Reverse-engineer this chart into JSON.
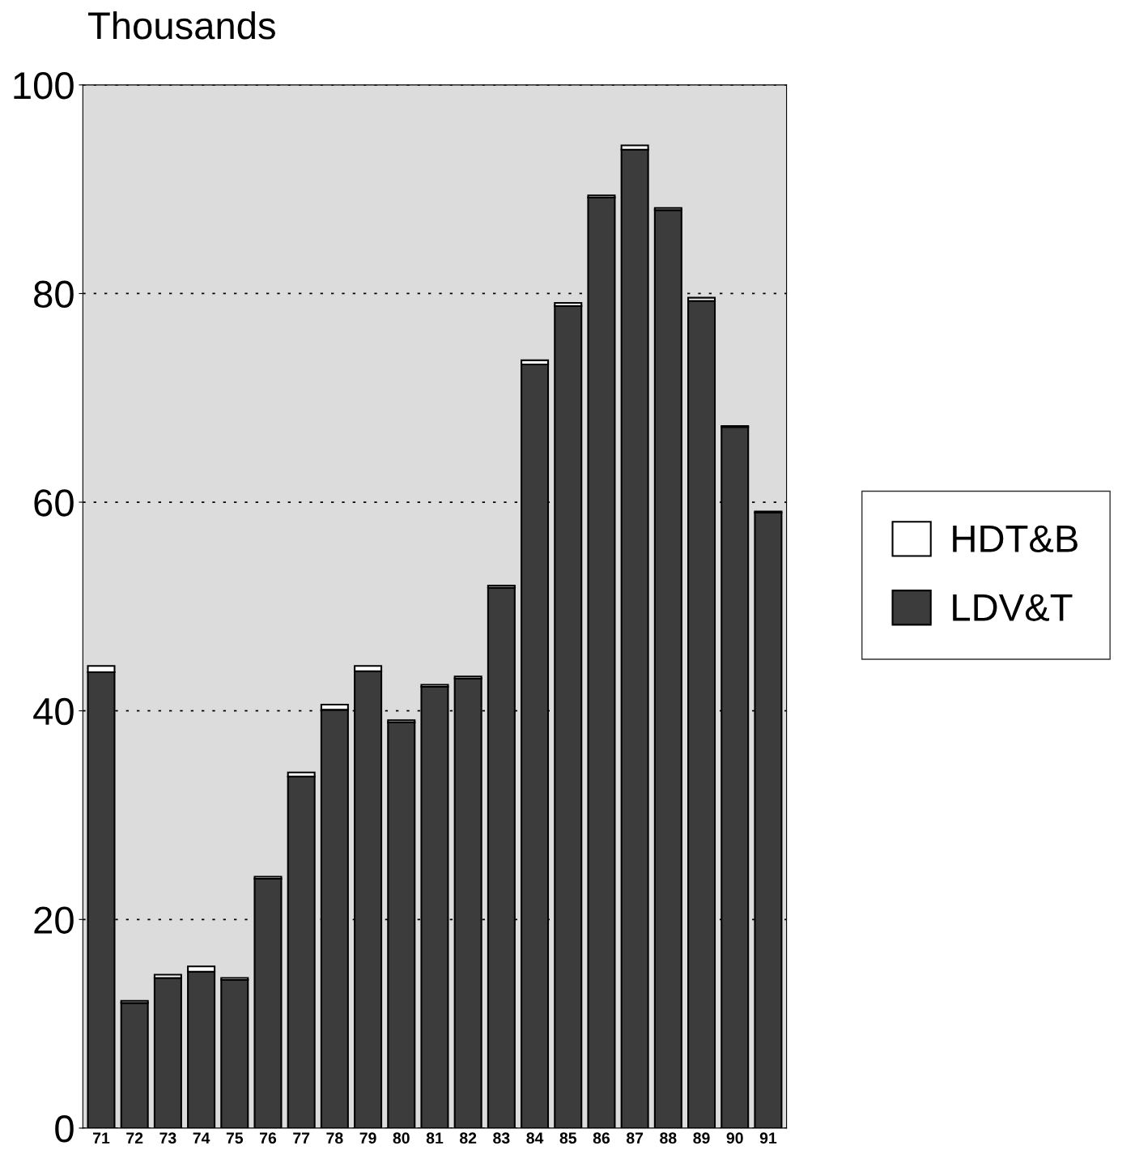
{
  "chart_data": {
    "type": "bar",
    "stacked": true,
    "ylabel": "Thousands",
    "categories": [
      "71",
      "72",
      "73",
      "74",
      "75",
      "76",
      "77",
      "78",
      "79",
      "80",
      "81",
      "82",
      "83",
      "84",
      "85",
      "86",
      "87",
      "88",
      "89",
      "90",
      "91"
    ],
    "series": [
      {
        "name": "LDV&T",
        "color": "#3c3c3c",
        "values": [
          43.7,
          12.0,
          14.4,
          15.0,
          14.2,
          23.9,
          33.7,
          40.1,
          43.8,
          38.9,
          42.3,
          43.1,
          51.8,
          73.2,
          78.8,
          89.2,
          93.8,
          88.0,
          79.3,
          67.2,
          59.0
        ]
      },
      {
        "name": "HDT&B",
        "color": "#ffffff",
        "values": [
          0.6,
          0.2,
          0.3,
          0.5,
          0.2,
          0.2,
          0.4,
          0.5,
          0.5,
          0.2,
          0.2,
          0.2,
          0.2,
          0.4,
          0.3,
          0.2,
          0.4,
          0.2,
          0.3,
          0.1,
          0.1
        ]
      }
    ],
    "ylim": [
      0,
      100
    ],
    "yticks": [
      0,
      20,
      40,
      60,
      80,
      100
    ],
    "grid": "y",
    "legend": "right"
  }
}
